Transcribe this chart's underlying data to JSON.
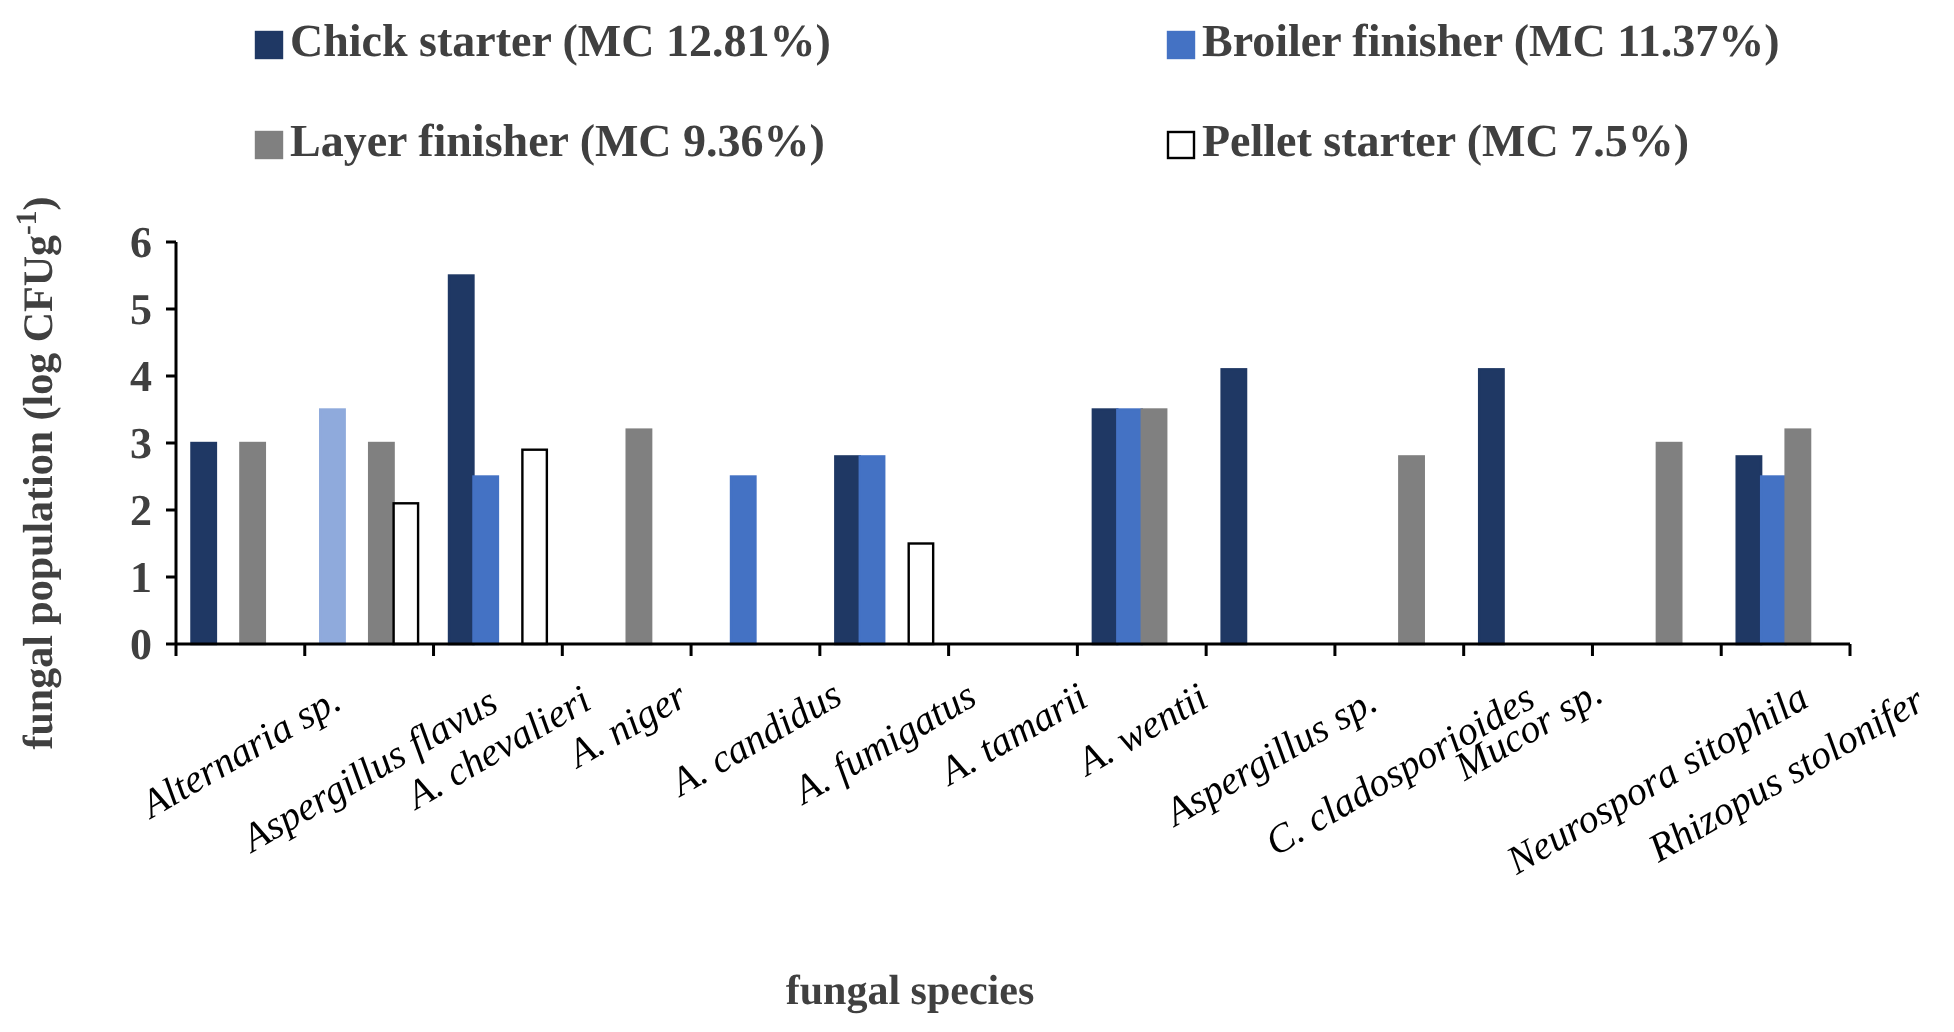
{
  "chart_data": {
    "type": "bar",
    "xlabel": "fungal species",
    "ylabel": "fungal population (log CFUg$^{-1}$)",
    "categories": [
      "Alternaria sp.",
      "Aspergillus flavus",
      "A. chevalieri",
      "A. niger",
      "A. candidus",
      "A. fumigatus",
      "A. tamarii",
      "A. wentii",
      "Aspergillus sp.",
      "C. cladosporioides",
      "Mucor sp.",
      "Neurospora sitophila",
      "Rhizopus stolonifer"
    ],
    "series": [
      {
        "name": "Chick starter (MC 12.81%)",
        "color": "#1f3864",
        "colors": [
          "#1f3864",
          "#8faadc",
          "#1f3864",
          "#1f3864",
          "#1f3864",
          "#1f3864",
          "#1f3864",
          "#1f3864",
          "#1f3864",
          "#1f3864",
          "#1f3864",
          "#1f3864",
          "#1f3864"
        ],
        "values": [
          3.0,
          3.5,
          5.5,
          null,
          null,
          2.8,
          null,
          3.5,
          4.1,
          null,
          4.1,
          null,
          2.8
        ]
      },
      {
        "name": "Broiler finisher (MC 11.37%)",
        "color": "#4472c4",
        "values": [
          null,
          null,
          2.5,
          null,
          2.5,
          2.8,
          null,
          3.5,
          null,
          null,
          null,
          null,
          2.5
        ]
      },
      {
        "name": "Layer finisher (MC 9.36%)",
        "color": "#808080",
        "values": [
          3.0,
          3.0,
          null,
          3.2,
          null,
          null,
          null,
          3.5,
          null,
          2.8,
          null,
          3.0,
          3.2
        ]
      },
      {
        "name": "Pellet starter (MC 7.5%)",
        "color": "#ffffff",
        "values": [
          null,
          2.1,
          2.9,
          null,
          null,
          1.5,
          null,
          null,
          null,
          null,
          null,
          null,
          null
        ]
      }
    ],
    "ylim": [
      0,
      6
    ],
    "yticks": [
      0,
      1,
      2,
      3,
      4,
      5,
      6
    ],
    "grid": false,
    "legend": "top"
  }
}
